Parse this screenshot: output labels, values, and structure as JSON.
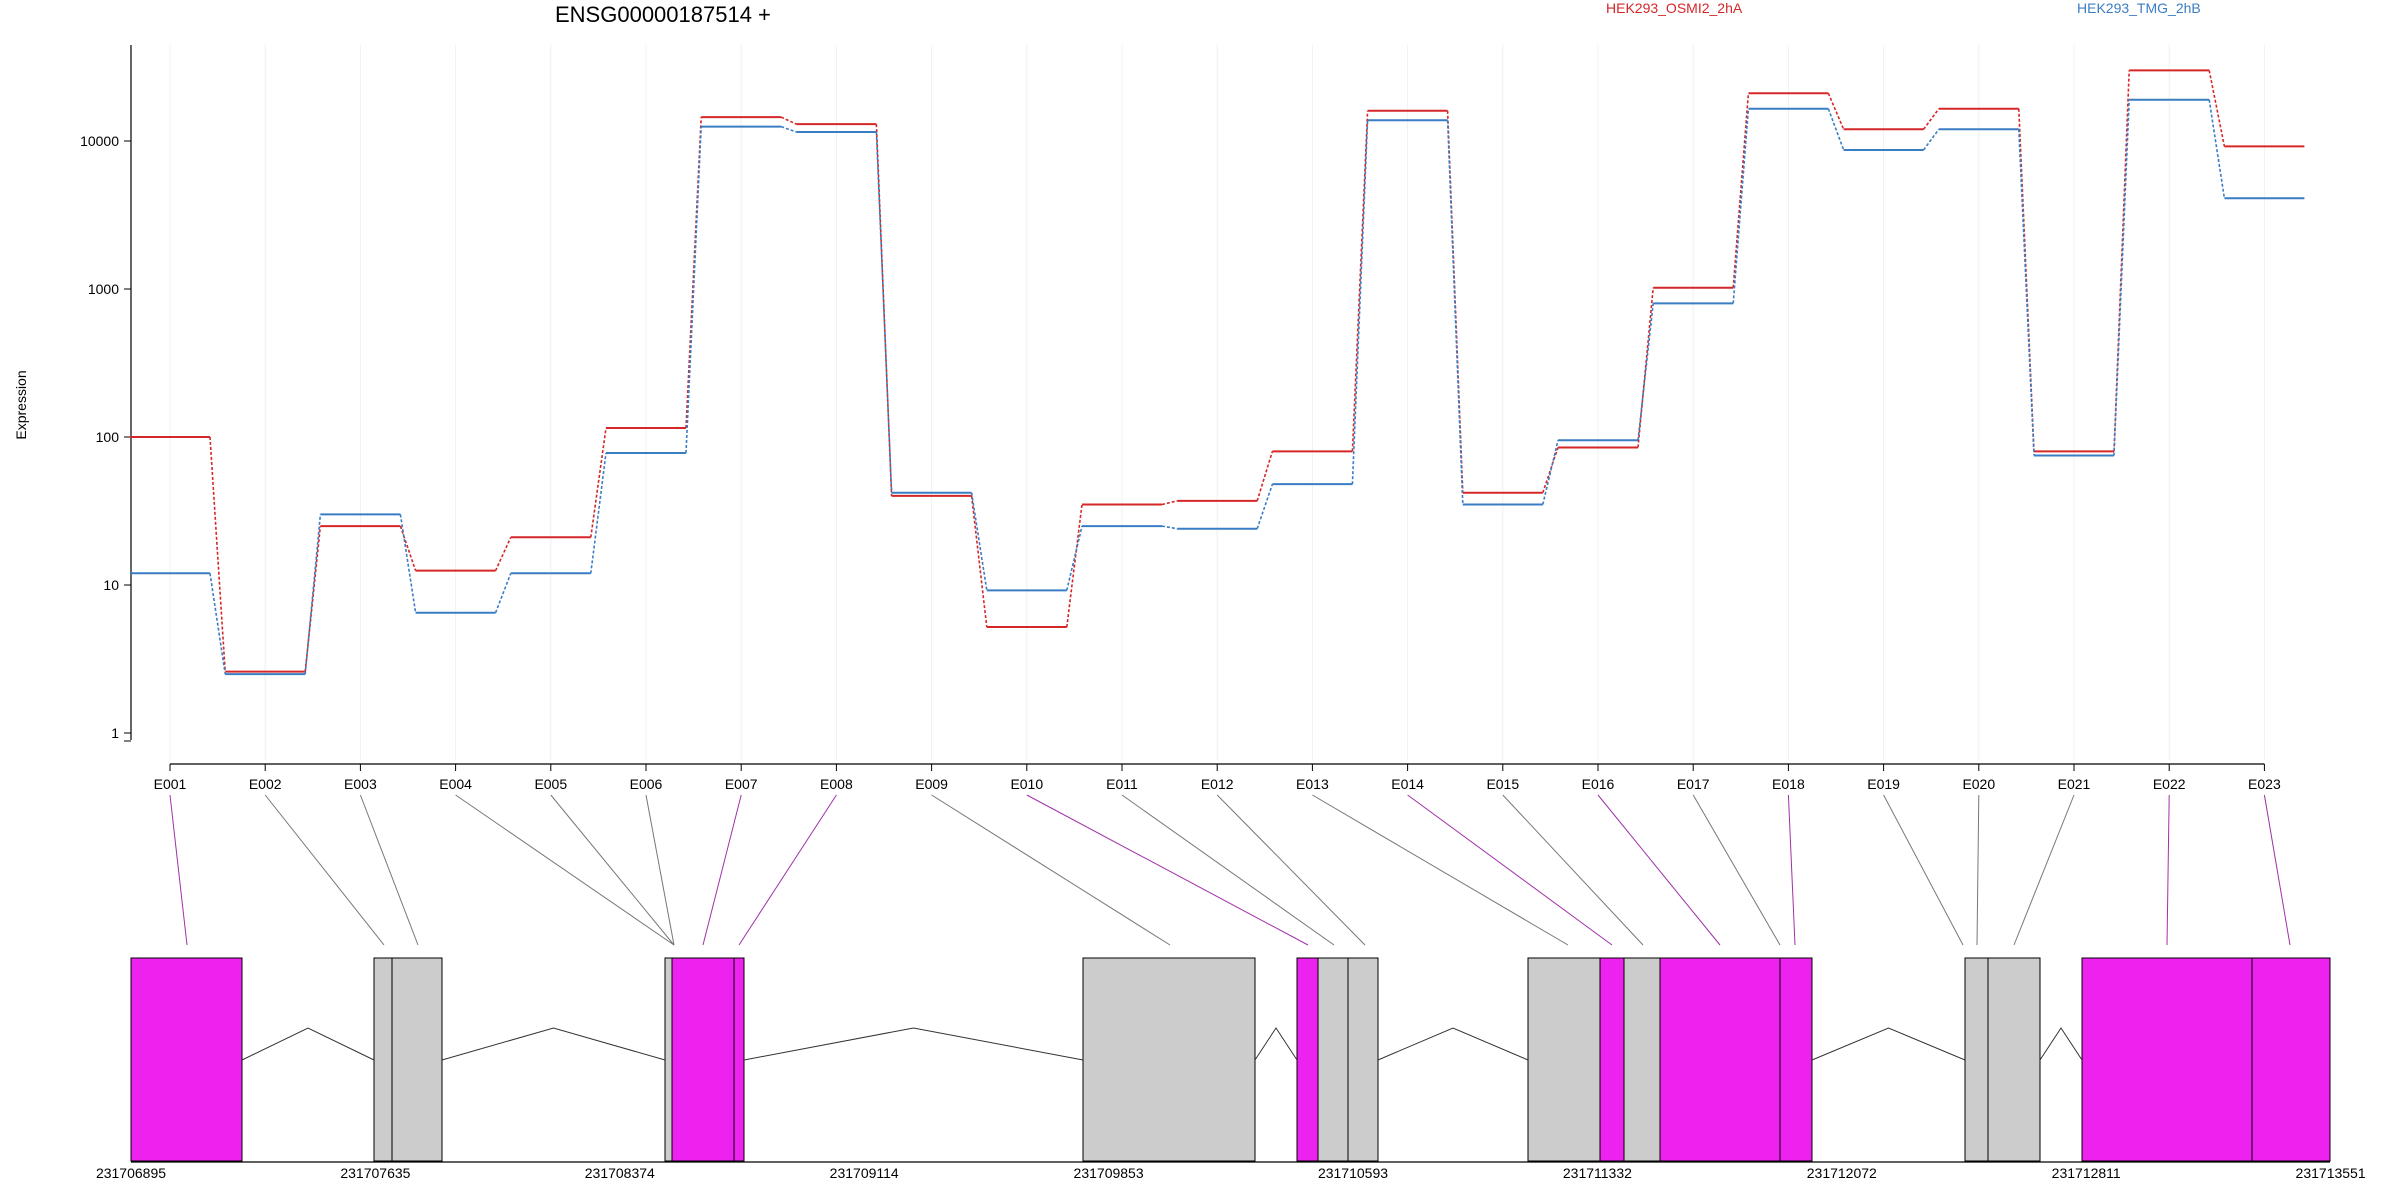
{
  "chart_data": {
    "type": "line",
    "title": "ENSG00000187514 +",
    "ylabel": "Expression",
    "yscale": "log",
    "ylim": [
      0.5,
      40000
    ],
    "yticks": [
      1,
      10,
      100,
      1000,
      10000
    ],
    "yticklabels": [
      "1",
      "10",
      "100",
      "1000",
      "10000"
    ],
    "categories": [
      "E001",
      "E002",
      "E003",
      "E004",
      "E005",
      "E006",
      "E007",
      "E008",
      "E009",
      "E010",
      "E011",
      "E012",
      "E013",
      "E014",
      "E015",
      "E016",
      "E017",
      "E018",
      "E019",
      "E020",
      "E021",
      "E022",
      "E023"
    ],
    "series": [
      {
        "name": "HEK293_OSMI2_2hA",
        "color": "#d62728",
        "values": [
          100,
          2.6,
          25,
          12.5,
          21,
          115,
          14500,
          13000,
          40,
          5.2,
          35,
          37,
          80,
          16000,
          42,
          85,
          1020,
          21000,
          12000,
          16500,
          80,
          30000,
          9200
        ]
      },
      {
        "name": "HEK293_TMG_2hB",
        "color": "#3b7dc4",
        "values": [
          12,
          2.5,
          30,
          6.5,
          12,
          78,
          12500,
          11500,
          42,
          9.2,
          25,
          24,
          48,
          13800,
          35,
          95,
          800,
          16500,
          8700,
          12000,
          75,
          19000,
          4100
        ]
      }
    ],
    "grid": true,
    "legend_position": "top-right",
    "gene_track": {
      "exon_color_highlight": "#ee22ee",
      "exon_color_normal": "#cccccc",
      "exon_mapping": [
        {
          "exon": "E001",
          "highlight": true
        },
        {
          "exon": "E002",
          "highlight": false
        },
        {
          "exon": "E003",
          "highlight": false
        },
        {
          "exon": "E004",
          "highlight": false
        },
        {
          "exon": "E005",
          "highlight": false
        },
        {
          "exon": "E006",
          "highlight": false
        },
        {
          "exon": "E007",
          "highlight": true
        },
        {
          "exon": "E008",
          "highlight": true
        },
        {
          "exon": "E009",
          "highlight": false
        },
        {
          "exon": "E010",
          "highlight": true
        },
        {
          "exon": "E011",
          "highlight": false
        },
        {
          "exon": "E012",
          "highlight": false
        },
        {
          "exon": "E013",
          "highlight": false
        },
        {
          "exon": "E014",
          "highlight": true
        },
        {
          "exon": "E015",
          "highlight": false
        },
        {
          "exon": "E016",
          "highlight": true
        },
        {
          "exon": "E017",
          "highlight": false
        },
        {
          "exon": "E018",
          "highlight": true
        },
        {
          "exon": "E019",
          "highlight": false
        },
        {
          "exon": "E020",
          "highlight": false
        },
        {
          "exon": "E021",
          "highlight": false
        },
        {
          "exon": "E022",
          "highlight": true
        },
        {
          "exon": "E023",
          "highlight": true
        }
      ],
      "coordinates": [
        "231706895",
        "231707635",
        "231708374",
        "231709114",
        "231709853",
        "231710593",
        "231711332",
        "231712072",
        "231712811",
        "231713551"
      ]
    }
  }
}
